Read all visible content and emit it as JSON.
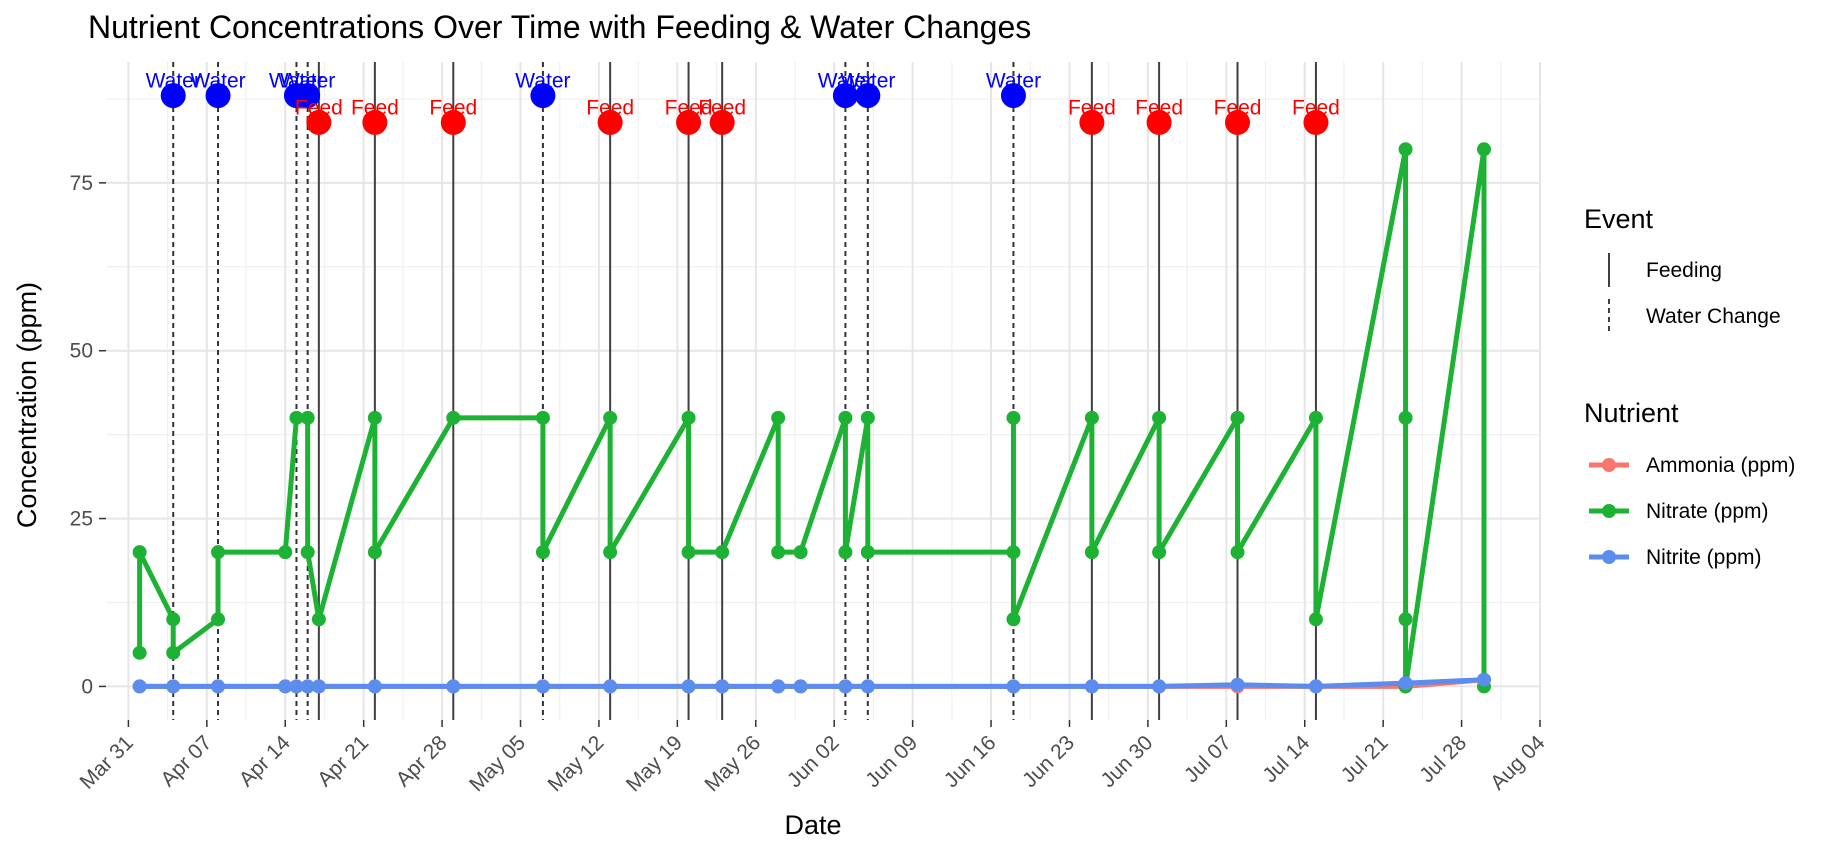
{
  "chart_data": {
    "type": "line",
    "title": "Nutrient Concentrations Over Time with Feeding & Water Changes",
    "xlabel": "Date",
    "ylabel": "Concentration (ppm)",
    "x_ticks": [
      "2024-03-31",
      "2024-04-07",
      "2024-04-14",
      "2024-04-21",
      "2024-04-28",
      "2024-05-05",
      "2024-05-12",
      "2024-05-19",
      "2024-05-26",
      "2024-06-02",
      "2024-06-09",
      "2024-06-16",
      "2024-06-23",
      "2024-06-30",
      "2024-07-07",
      "2024-07-14",
      "2024-07-21",
      "2024-07-28",
      "2024-08-04"
    ],
    "x_tick_labels": [
      "Mar 31",
      "Apr 07",
      "Apr 14",
      "Apr 21",
      "Apr 28",
      "May 05",
      "May 12",
      "May 19",
      "May 26",
      "Jun 02",
      "Jun 09",
      "Jun 16",
      "Jun 23",
      "Jun 30",
      "Jul 07",
      "Jul 14",
      "Jul 21",
      "Jul 28",
      "Aug 04"
    ],
    "xlim": [
      "2024-03-29",
      "2024-08-04"
    ],
    "y_ticks": [
      0,
      25,
      50,
      75
    ],
    "y_tick_labels": [
      "0",
      "25",
      "50",
      "75"
    ],
    "ylim": [
      -5,
      93
    ],
    "grid": true,
    "legend_placement": "right",
    "series": [
      {
        "name": "Ammonia (ppm)",
        "color": "#F8766D",
        "points": [
          [
            "2024-04-01",
            0
          ],
          [
            "2024-04-04",
            0
          ],
          [
            "2024-04-08",
            0
          ],
          [
            "2024-04-14",
            0
          ],
          [
            "2024-04-15",
            0
          ],
          [
            "2024-04-16",
            0
          ],
          [
            "2024-04-17",
            0
          ],
          [
            "2024-04-22",
            0
          ],
          [
            "2024-04-29",
            0
          ],
          [
            "2024-05-07",
            0
          ],
          [
            "2024-05-13",
            0
          ],
          [
            "2024-05-20",
            0
          ],
          [
            "2024-05-23",
            0
          ],
          [
            "2024-05-28",
            0
          ],
          [
            "2024-05-30",
            0
          ],
          [
            "2024-06-03",
            0
          ],
          [
            "2024-06-05",
            0
          ],
          [
            "2024-06-18",
            0
          ],
          [
            "2024-06-25",
            0
          ],
          [
            "2024-07-01",
            0
          ],
          [
            "2024-07-08",
            0
          ],
          [
            "2024-07-15",
            0
          ],
          [
            "2024-07-23",
            0
          ],
          [
            "2024-07-30",
            1
          ]
        ]
      },
      {
        "name": "Nitrate (ppm)",
        "color": "#1DB233",
        "points": [
          [
            "2024-04-01",
            5
          ],
          [
            "2024-04-01",
            20
          ],
          [
            "2024-04-04",
            10
          ],
          [
            "2024-04-04",
            5
          ],
          [
            "2024-04-08",
            10
          ],
          [
            "2024-04-08",
            20
          ],
          [
            "2024-04-14",
            20
          ],
          [
            "2024-04-15",
            40
          ],
          [
            "2024-04-16",
            40
          ],
          [
            "2024-04-16",
            20
          ],
          [
            "2024-04-17",
            10
          ],
          [
            "2024-04-22",
            40
          ],
          [
            "2024-04-22",
            20
          ],
          [
            "2024-04-29",
            40
          ],
          [
            "2024-05-07",
            40
          ],
          [
            "2024-05-07",
            20
          ],
          [
            "2024-05-13",
            40
          ],
          [
            "2024-05-13",
            20
          ],
          [
            "2024-05-20",
            40
          ],
          [
            "2024-05-20",
            20
          ],
          [
            "2024-05-23",
            20
          ],
          [
            "2024-05-28",
            40
          ],
          [
            "2024-05-28",
            20
          ],
          [
            "2024-05-30",
            20
          ],
          [
            "2024-06-03",
            40
          ],
          [
            "2024-06-03",
            20
          ],
          [
            "2024-06-05",
            40
          ],
          [
            "2024-06-05",
            20
          ],
          [
            "2024-06-18",
            20
          ],
          [
            "2024-06-18",
            40
          ],
          [
            "2024-06-18",
            10
          ],
          [
            "2024-06-25",
            40
          ],
          [
            "2024-06-25",
            20
          ],
          [
            "2024-07-01",
            40
          ],
          [
            "2024-07-01",
            20
          ],
          [
            "2024-07-08",
            40
          ],
          [
            "2024-07-08",
            20
          ],
          [
            "2024-07-15",
            40
          ],
          [
            "2024-07-15",
            10
          ],
          [
            "2024-07-23",
            80
          ],
          [
            "2024-07-23",
            40
          ],
          [
            "2024-07-23",
            10
          ],
          [
            "2024-07-23",
            0
          ],
          [
            "2024-07-30",
            80
          ],
          [
            "2024-07-30",
            0
          ]
        ]
      },
      {
        "name": "Nitrite (ppm)",
        "color": "#5B8DEF",
        "points": [
          [
            "2024-04-01",
            0
          ],
          [
            "2024-04-04",
            0
          ],
          [
            "2024-04-08",
            0
          ],
          [
            "2024-04-14",
            0
          ],
          [
            "2024-04-15",
            0
          ],
          [
            "2024-04-16",
            0
          ],
          [
            "2024-04-17",
            0
          ],
          [
            "2024-04-22",
            0
          ],
          [
            "2024-04-29",
            0
          ],
          [
            "2024-05-07",
            0
          ],
          [
            "2024-05-13",
            0
          ],
          [
            "2024-05-20",
            0
          ],
          [
            "2024-05-23",
            0
          ],
          [
            "2024-05-28",
            0
          ],
          [
            "2024-05-30",
            0
          ],
          [
            "2024-06-03",
            0
          ],
          [
            "2024-06-05",
            0
          ],
          [
            "2024-06-18",
            0
          ],
          [
            "2024-06-25",
            0
          ],
          [
            "2024-07-01",
            0
          ],
          [
            "2024-07-08",
            0.25
          ],
          [
            "2024-07-15",
            0
          ],
          [
            "2024-07-23",
            0.5
          ],
          [
            "2024-07-30",
            1
          ]
        ]
      }
    ],
    "event_legend_title": "Event",
    "event_types": [
      {
        "name": "Feeding",
        "style": "solid"
      },
      {
        "name": "Water Change",
        "style": "dashed"
      }
    ],
    "series_legend_title": "Nutrient",
    "events": [
      {
        "date": "2024-04-04",
        "type": "Water Change",
        "label": "Water",
        "color": "#0000FF",
        "y": 88
      },
      {
        "date": "2024-04-08",
        "type": "Water Change",
        "label": "Water",
        "color": "#0000FF",
        "y": 88
      },
      {
        "date": "2024-04-15",
        "type": "Water Change",
        "label": "Water",
        "color": "#0000FF",
        "y": 88
      },
      {
        "date": "2024-04-16",
        "type": "Water Change",
        "label": "Water",
        "color": "#0000FF",
        "y": 88
      },
      {
        "date": "2024-04-17",
        "type": "Feeding",
        "label": "Feed",
        "color": "#FF0000",
        "y": 84
      },
      {
        "date": "2024-04-22",
        "type": "Feeding",
        "label": "Feed",
        "color": "#FF0000",
        "y": 84
      },
      {
        "date": "2024-04-29",
        "type": "Feeding",
        "label": "Feed",
        "color": "#FF0000",
        "y": 84
      },
      {
        "date": "2024-05-07",
        "type": "Water Change",
        "label": "Water",
        "color": "#0000FF",
        "y": 88
      },
      {
        "date": "2024-05-13",
        "type": "Feeding",
        "label": "Feed",
        "color": "#FF0000",
        "y": 84
      },
      {
        "date": "2024-05-20",
        "type": "Feeding",
        "label": "Feed",
        "color": "#FF0000",
        "y": 84
      },
      {
        "date": "2024-05-23",
        "type": "Feeding",
        "label": "Feed",
        "color": "#FF0000",
        "y": 84
      },
      {
        "date": "2024-06-03",
        "type": "Water Change",
        "label": "Water",
        "color": "#0000FF",
        "y": 88
      },
      {
        "date": "2024-06-05",
        "type": "Water Change",
        "label": "Water",
        "color": "#0000FF",
        "y": 88
      },
      {
        "date": "2024-06-18",
        "type": "Water Change",
        "label": "Water",
        "color": "#0000FF",
        "y": 88
      },
      {
        "date": "2024-06-25",
        "type": "Feeding",
        "label": "Feed",
        "color": "#FF0000",
        "y": 84
      },
      {
        "date": "2024-07-01",
        "type": "Feeding",
        "label": "Feed",
        "color": "#FF0000",
        "y": 84
      },
      {
        "date": "2024-07-08",
        "type": "Feeding",
        "label": "Feed",
        "color": "#FF0000",
        "y": 84
      },
      {
        "date": "2024-07-15",
        "type": "Feeding",
        "label": "Feed",
        "color": "#FF0000",
        "y": 84
      }
    ]
  }
}
